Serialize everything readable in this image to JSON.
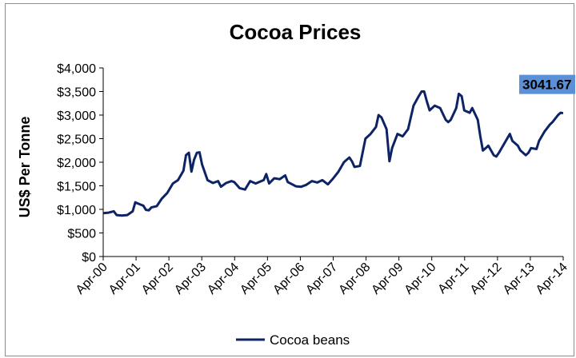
{
  "chart_data": {
    "type": "line",
    "title": "Cocoa Prices",
    "ylabel": "US$ Per Tonne",
    "xlabel": "",
    "ylim": [
      0,
      4000
    ],
    "y_ticks": [
      0,
      500,
      1000,
      1500,
      2000,
      2500,
      3000,
      3500,
      4000
    ],
    "y_tick_labels": [
      "$0",
      "$500",
      "$1,000",
      "$1,500",
      "$2,000",
      "$2,500",
      "$3,000",
      "$3,500",
      "$4,000"
    ],
    "x_tick_labels": [
      "Apr-00",
      "Apr-01",
      "Apr-02",
      "Apr-03",
      "Apr-04",
      "Apr-05",
      "Apr-06",
      "Apr-07",
      "Apr-08",
      "Apr-09",
      "Apr-10",
      "Apr-11",
      "Apr-12",
      "Apr-13",
      "Apr-14"
    ],
    "grid": false,
    "legend_position": "bottom",
    "callout": {
      "text": "3041.67",
      "color": "#5b8fd6"
    },
    "series": [
      {
        "name": "Cocoa beans",
        "color": "#0d2366",
        "points": [
          [
            2000.0,
            920
          ],
          [
            2000.17,
            930
          ],
          [
            2000.33,
            960
          ],
          [
            2000.42,
            880
          ],
          [
            2000.58,
            870
          ],
          [
            2000.75,
            880
          ],
          [
            2000.92,
            960
          ],
          [
            2001.0,
            1150
          ],
          [
            2001.17,
            1100
          ],
          [
            2001.25,
            1080
          ],
          [
            2001.33,
            990
          ],
          [
            2001.42,
            980
          ],
          [
            2001.5,
            1040
          ],
          [
            2001.67,
            1070
          ],
          [
            2001.83,
            1230
          ],
          [
            2002.0,
            1350
          ],
          [
            2002.17,
            1550
          ],
          [
            2002.33,
            1620
          ],
          [
            2002.5,
            1820
          ],
          [
            2002.58,
            2150
          ],
          [
            2002.67,
            2200
          ],
          [
            2002.75,
            1800
          ],
          [
            2002.83,
            2050
          ],
          [
            2002.92,
            2200
          ],
          [
            2003.0,
            2210
          ],
          [
            2003.08,
            1950
          ],
          [
            2003.25,
            1620
          ],
          [
            2003.42,
            1560
          ],
          [
            2003.58,
            1600
          ],
          [
            2003.67,
            1480
          ],
          [
            2003.83,
            1560
          ],
          [
            2004.0,
            1600
          ],
          [
            2004.08,
            1580
          ],
          [
            2004.25,
            1450
          ],
          [
            2004.42,
            1420
          ],
          [
            2004.58,
            1600
          ],
          [
            2004.75,
            1550
          ],
          [
            2005.0,
            1620
          ],
          [
            2005.08,
            1750
          ],
          [
            2005.17,
            1550
          ],
          [
            2005.33,
            1660
          ],
          [
            2005.5,
            1640
          ],
          [
            2005.67,
            1720
          ],
          [
            2005.75,
            1580
          ],
          [
            2005.92,
            1520
          ],
          [
            2006.0,
            1490
          ],
          [
            2006.17,
            1480
          ],
          [
            2006.33,
            1520
          ],
          [
            2006.5,
            1600
          ],
          [
            2006.67,
            1570
          ],
          [
            2006.83,
            1620
          ],
          [
            2007.0,
            1530
          ],
          [
            2007.17,
            1660
          ],
          [
            2007.33,
            1800
          ],
          [
            2007.5,
            2000
          ],
          [
            2007.58,
            2050
          ],
          [
            2007.67,
            2100
          ],
          [
            2007.75,
            2020
          ],
          [
            2007.83,
            1900
          ],
          [
            2008.0,
            1920
          ],
          [
            2008.17,
            2500
          ],
          [
            2008.33,
            2600
          ],
          [
            2008.5,
            2750
          ],
          [
            2008.58,
            3000
          ],
          [
            2008.67,
            2950
          ],
          [
            2008.83,
            2700
          ],
          [
            2008.92,
            2020
          ],
          [
            2009.0,
            2300
          ],
          [
            2009.17,
            2600
          ],
          [
            2009.33,
            2550
          ],
          [
            2009.5,
            2700
          ],
          [
            2009.67,
            3200
          ],
          [
            2009.83,
            3400
          ],
          [
            2009.92,
            3500
          ],
          [
            2010.0,
            3500
          ],
          [
            2010.08,
            3300
          ],
          [
            2010.17,
            3100
          ],
          [
            2010.33,
            3200
          ],
          [
            2010.5,
            3150
          ],
          [
            2010.67,
            2900
          ],
          [
            2010.75,
            2850
          ],
          [
            2010.83,
            2900
          ],
          [
            2011.0,
            3150
          ],
          [
            2011.08,
            3450
          ],
          [
            2011.17,
            3400
          ],
          [
            2011.25,
            3100
          ],
          [
            2011.42,
            3050
          ],
          [
            2011.5,
            3150
          ],
          [
            2011.67,
            2900
          ],
          [
            2011.75,
            2550
          ],
          [
            2011.83,
            2250
          ],
          [
            2011.92,
            2300
          ],
          [
            2012.0,
            2350
          ],
          [
            2012.17,
            2150
          ],
          [
            2012.25,
            2120
          ],
          [
            2012.33,
            2200
          ],
          [
            2012.5,
            2400
          ],
          [
            2012.67,
            2600
          ],
          [
            2012.75,
            2450
          ],
          [
            2012.92,
            2350
          ],
          [
            2013.0,
            2250
          ],
          [
            2013.17,
            2150
          ],
          [
            2013.25,
            2200
          ],
          [
            2013.33,
            2300
          ],
          [
            2013.5,
            2280
          ],
          [
            2013.58,
            2450
          ],
          [
            2013.75,
            2650
          ],
          [
            2013.92,
            2800
          ],
          [
            2014.0,
            2850
          ],
          [
            2014.17,
            3000
          ],
          [
            2014.25,
            3050
          ],
          [
            2014.33,
            3040
          ]
        ]
      }
    ]
  }
}
